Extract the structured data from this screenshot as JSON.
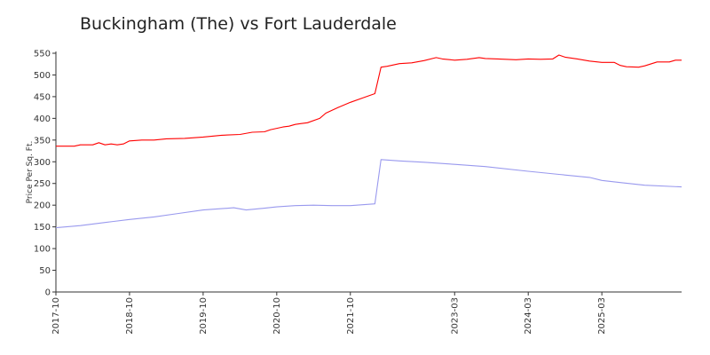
{
  "chart_data": {
    "type": "line",
    "title": "Buckingham (The) vs Fort Lauderdale",
    "ylabel": "Price Per Sq. Ft.",
    "xlabel": "",
    "ylim": [
      0,
      550
    ],
    "yticks": [
      0,
      50,
      100,
      150,
      200,
      250,
      300,
      350,
      400,
      450,
      500,
      550
    ],
    "xlim": [
      "2017-10",
      "2026-04"
    ],
    "xticks": [
      "2017-10",
      "2018-10",
      "2019-10",
      "2020-10",
      "2021-10",
      "2023-03",
      "2024-03",
      "2025-03"
    ],
    "grid": false,
    "legend": "none",
    "series": [
      {
        "color": "#ff0000",
        "points": [
          [
            "2017-10",
            336
          ],
          [
            "2018-01",
            336
          ],
          [
            "2018-02",
            339
          ],
          [
            "2018-04",
            339
          ],
          [
            "2018-05",
            344
          ],
          [
            "2018-06",
            339
          ],
          [
            "2018-07",
            341
          ],
          [
            "2018-08",
            339
          ],
          [
            "2018-09",
            341
          ],
          [
            "2018-10",
            348
          ],
          [
            "2018-12",
            350
          ],
          [
            "2019-02",
            350
          ],
          [
            "2019-04",
            353
          ],
          [
            "2019-07",
            354
          ],
          [
            "2019-10",
            357
          ],
          [
            "2020-01",
            361
          ],
          [
            "2020-04",
            363
          ],
          [
            "2020-06",
            368
          ],
          [
            "2020-08",
            369
          ],
          [
            "2020-09",
            374
          ],
          [
            "2020-10",
            377
          ],
          [
            "2020-11",
            380
          ],
          [
            "2020-12",
            382
          ],
          [
            "2021-01",
            386
          ],
          [
            "2021-02",
            388
          ],
          [
            "2021-03",
            390
          ],
          [
            "2021-05",
            400
          ],
          [
            "2021-06",
            412
          ],
          [
            "2021-08",
            425
          ],
          [
            "2021-10",
            437
          ],
          [
            "2021-12",
            447
          ],
          [
            "2022-02",
            457
          ],
          [
            "2022-03",
            518
          ],
          [
            "2022-04",
            520
          ],
          [
            "2022-06",
            526
          ],
          [
            "2022-08",
            528
          ],
          [
            "2022-10",
            533
          ],
          [
            "2022-12",
            540
          ],
          [
            "2023-01",
            537
          ],
          [
            "2023-03",
            534
          ],
          [
            "2023-05",
            536
          ],
          [
            "2023-07",
            540
          ],
          [
            "2023-08",
            538
          ],
          [
            "2023-10",
            537
          ],
          [
            "2024-01",
            535
          ],
          [
            "2024-03",
            537
          ],
          [
            "2024-05",
            536
          ],
          [
            "2024-07",
            537
          ],
          [
            "2024-08",
            546
          ],
          [
            "2024-09",
            541
          ],
          [
            "2024-11",
            537
          ],
          [
            "2025-01",
            532
          ],
          [
            "2025-03",
            529
          ],
          [
            "2025-05",
            529
          ],
          [
            "2025-06",
            522
          ],
          [
            "2025-07",
            519
          ],
          [
            "2025-09",
            518
          ],
          [
            "2025-10",
            521
          ],
          [
            "2025-12",
            530
          ],
          [
            "2026-02",
            530
          ],
          [
            "2026-03",
            534
          ],
          [
            "2026-04",
            534
          ]
        ]
      },
      {
        "color": "#9999ee",
        "points": [
          [
            "2017-10",
            148
          ],
          [
            "2018-02",
            153
          ],
          [
            "2018-06",
            160
          ],
          [
            "2018-10",
            167
          ],
          [
            "2019-02",
            173
          ],
          [
            "2019-06",
            181
          ],
          [
            "2019-10",
            189
          ],
          [
            "2020-03",
            194
          ],
          [
            "2020-05",
            189
          ],
          [
            "2020-08",
            193
          ],
          [
            "2020-10",
            196
          ],
          [
            "2021-01",
            199
          ],
          [
            "2021-04",
            200
          ],
          [
            "2021-07",
            199
          ],
          [
            "2021-10",
            199
          ],
          [
            "2022-02",
            203
          ],
          [
            "2022-03",
            305
          ],
          [
            "2022-06",
            302
          ],
          [
            "2022-10",
            299
          ],
          [
            "2023-03",
            294
          ],
          [
            "2023-08",
            289
          ],
          [
            "2024-03",
            278
          ],
          [
            "2024-08",
            271
          ],
          [
            "2025-01",
            264
          ],
          [
            "2025-03",
            257
          ],
          [
            "2025-06",
            252
          ],
          [
            "2025-10",
            246
          ],
          [
            "2026-04",
            242
          ]
        ]
      }
    ]
  }
}
